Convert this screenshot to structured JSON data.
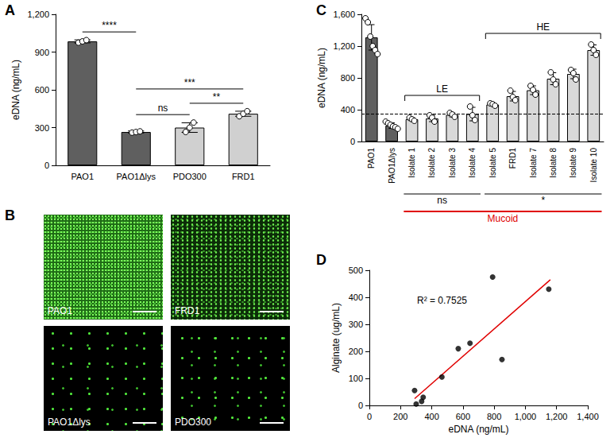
{
  "chart_data": [
    {
      "panel": "A",
      "type": "bar",
      "categories": [
        "PAO1",
        "PAO1Δlys",
        "PDO300",
        "FRD1"
      ],
      "values": [
        985,
        265,
        300,
        410
      ],
      "errors": [
        12,
        8,
        38,
        20
      ],
      "points": [
        [
          975,
          985,
          995
        ],
        [
          260,
          265,
          270
        ],
        [
          265,
          300,
          340
        ],
        [
          390,
          410,
          430
        ]
      ],
      "colors": [
        "#5f5f5f",
        "#5f5f5f",
        "#d0d0d0",
        "#d0d0d0"
      ],
      "ylabel": "eDNA (ng/mL)",
      "ylim": [
        0,
        1200
      ],
      "yticks": [
        0,
        300,
        600,
        900,
        1200
      ],
      "brackets": [
        {
          "text": "ns",
          "from": "PAO1Δlys",
          "to": "PDO300"
        },
        {
          "text": "**",
          "from": "PDO300",
          "to": "FRD1"
        },
        {
          "text": "***",
          "from": "PAO1Δlys",
          "to": "FRD1"
        },
        {
          "text": "****",
          "from": "PAO1",
          "to": "PAO1Δlys"
        }
      ]
    },
    {
      "panel": "C",
      "type": "bar",
      "categories": [
        "PAO1",
        "PAO1Δlys",
        "Isolate 1",
        "Isolate 2",
        "Isolate 3",
        "Isolate 4",
        "Isolate 5",
        "FRD1",
        "Isolate 7",
        "Isolate 8",
        "Isolate 9",
        "Isolate 10"
      ],
      "values": [
        1310,
        200,
        280,
        290,
        335,
        345,
        465,
        570,
        645,
        790,
        850,
        1150
      ],
      "errors": [
        160,
        35,
        20,
        40,
        25,
        85,
        15,
        60,
        55,
        75,
        60,
        65
      ],
      "points": [
        [
          1550,
          1500,
          1320,
          1200,
          1150,
          1100
        ],
        [
          250,
          230,
          210,
          190,
          180,
          160
        ],
        [
          300,
          280,
          260
        ],
        [
          330,
          300,
          250
        ],
        [
          360,
          340,
          310
        ],
        [
          440,
          330,
          270
        ],
        [
          480,
          470,
          450
        ],
        [
          640,
          560,
          520
        ],
        [
          700,
          650,
          590
        ],
        [
          870,
          780,
          720
        ],
        [
          900,
          860,
          780
        ],
        [
          1220,
          1150,
          1090
        ]
      ],
      "colors": [
        "#5f5f5f",
        "#5f5f5f",
        "#d9d9d9",
        "#d9d9d9",
        "#d9d9d9",
        "#d9d9d9",
        "#d9d9d9",
        "#d9d9d9",
        "#d9d9d9",
        "#d9d9d9",
        "#d9d9d9",
        "#d9d9d9"
      ],
      "ylabel": "eDNA (ng/mL)",
      "ylim": [
        0,
        1600
      ],
      "yticks": [
        0,
        400,
        800,
        1200,
        1600
      ],
      "reference_line": 345,
      "brackets": [
        {
          "text": "LE",
          "from": "Isolate 1",
          "to": "Isolate 4"
        },
        {
          "text": "HE",
          "from": "Isolate 5",
          "to": "Isolate 10"
        }
      ],
      "groups_below": [
        {
          "text": "ns",
          "from": "Isolate 1",
          "to": "Isolate 4"
        },
        {
          "text": "*",
          "from": "Isolate 5",
          "to": "Isolate 10"
        }
      ],
      "mucoid": {
        "text": "Mucoid",
        "from": "Isolate 1",
        "to": "Isolate 10",
        "color": "#e00000"
      }
    },
    {
      "panel": "D",
      "type": "scatter",
      "x": [
        290,
        300,
        335,
        345,
        465,
        570,
        645,
        790,
        850,
        1150
      ],
      "values": [
        55,
        5,
        15,
        30,
        105,
        210,
        230,
        475,
        170,
        430
      ],
      "color": "#000000",
      "fit": {
        "x": [
          290,
          1160
        ],
        "values": [
          25,
          465
        ],
        "color": "#e00000"
      },
      "annotation": "R² = 0.7525",
      "xlabel": "eDNA (ng/mL)",
      "ylabel": "Alginate (ug/mL)",
      "xlim": [
        0,
        1400
      ],
      "xticks": [
        0,
        200,
        400,
        600,
        800,
        1000,
        1200,
        1400
      ],
      "ylim": [
        0,
        500
      ],
      "yticks": [
        0,
        100,
        200,
        300,
        400,
        500
      ]
    }
  ],
  "panel_b": {
    "panel": "B",
    "images": [
      {
        "label": "PAO1"
      },
      {
        "label": "FRD1"
      },
      {
        "label": "PAO1Δlys"
      },
      {
        "label": "PDO300"
      }
    ]
  }
}
